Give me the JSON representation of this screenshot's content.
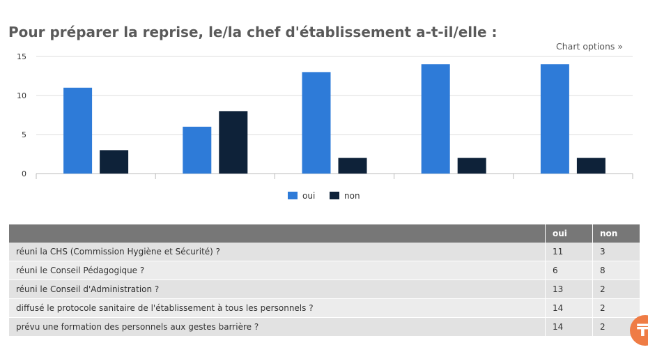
{
  "page": {
    "title": "Pour préparer la reprise, le/la chef d'établissement a-t-il/elle :",
    "chart_options_label": "Chart options »"
  },
  "colors": {
    "oui": "#2e7bd8",
    "non": "#0e2239",
    "header_bg": "#777777",
    "fab": "#ef7c45"
  },
  "chart_data": {
    "type": "bar",
    "title": "",
    "xlabel": "",
    "ylabel": "",
    "ylim": [
      0,
      15
    ],
    "yticks": [
      0,
      5,
      10,
      15
    ],
    "categories": [
      "réuni la CHS (Commission Hygiène et Sécurité) ?",
      "réuni le Conseil Pédagogique ?",
      "réuni le Conseil d'Administration ?",
      "diffusé le protocole sanitaire de l'établissement à tous les personnels ?",
      "prévu une formation des personnels aux gestes barrière ?"
    ],
    "x_tick_labels_shown": false,
    "grid": true,
    "legend_position": "bottom",
    "series": [
      {
        "name": "oui",
        "values": [
          11,
          6,
          13,
          14,
          14
        ]
      },
      {
        "name": "non",
        "values": [
          3,
          8,
          2,
          2,
          2
        ]
      }
    ]
  },
  "table": {
    "headers": [
      "",
      "oui",
      "non"
    ],
    "rows": [
      [
        "réuni la CHS (Commission Hygiène et Sécurité) ?",
        "11",
        "3"
      ],
      [
        "réuni le Conseil Pédagogique ?",
        "6",
        "8"
      ],
      [
        "réuni le Conseil d'Administration ?",
        "13",
        "2"
      ],
      [
        "diffusé le protocole sanitaire de l'établissement à tous les personnels ?",
        "14",
        "2"
      ],
      [
        "prévu une formation des personnels aux gestes barrière ?",
        "14",
        "2"
      ]
    ]
  },
  "fab": {
    "icon": "lines-icon",
    "glyph": "₸"
  }
}
